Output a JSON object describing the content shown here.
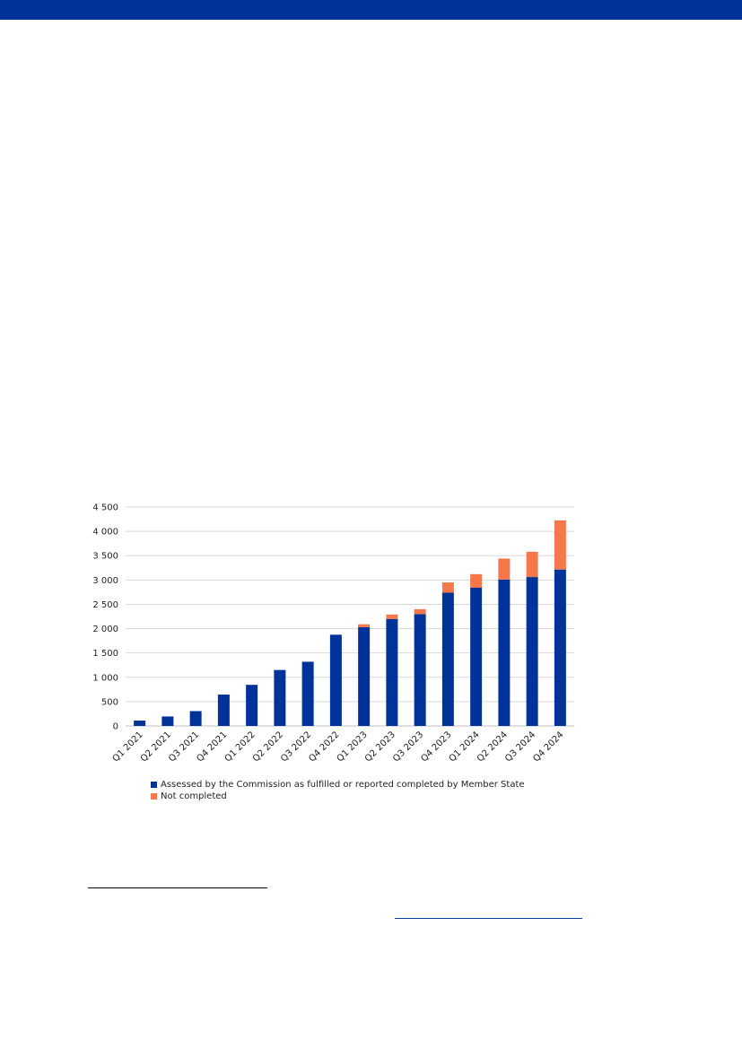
{
  "page": {
    "band_color": "#003399"
  },
  "chart_data": {
    "type": "bar",
    "stacked": true,
    "categories": [
      "Q1 2021",
      "Q2 2021",
      "Q3 2021",
      "Q4 2021",
      "Q1 2022",
      "Q2 2022",
      "Q3 2022",
      "Q4 2022",
      "Q1 2023",
      "Q2 2023",
      "Q3 2023",
      "Q4 2023",
      "Q1 2024",
      "Q2 2024",
      "Q3 2024",
      "Q4 2024"
    ],
    "series": [
      {
        "name": "Assessed by the Commission as fulfilled or reported completed by Member State",
        "color": "#003399",
        "values": [
          110,
          195,
          305,
          645,
          845,
          1150,
          1320,
          1875,
          2030,
          2200,
          2300,
          2740,
          2840,
          3010,
          3060,
          3215
        ]
      },
      {
        "name": "Not completed",
        "color": "#f5774a",
        "values": [
          0,
          0,
          0,
          0,
          0,
          0,
          0,
          0,
          60,
          90,
          100,
          210,
          280,
          430,
          520,
          1010
        ]
      }
    ],
    "yticks": [
      "0",
      "500",
      "1 000",
      "1 500",
      "2 000",
      "2 500",
      "3 000",
      "3 500",
      "4 000",
      "4 500"
    ],
    "ylim": [
      0,
      4500
    ],
    "grid": true,
    "legend_position": "bottom"
  }
}
